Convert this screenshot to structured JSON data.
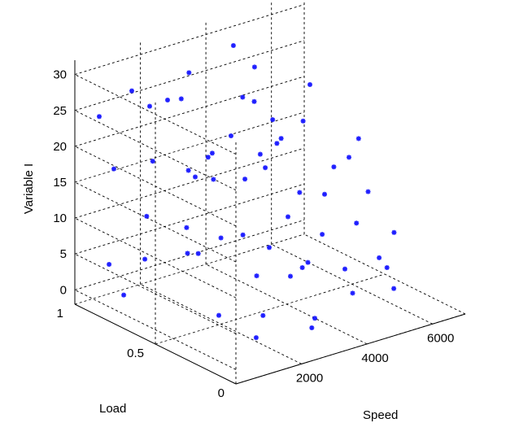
{
  "chart_data": {
    "type": "scatter",
    "dimensions": 3,
    "title": "",
    "xlabel": "Speed",
    "ylabel": "Load",
    "zlabel": "Variable I",
    "xlim": [
      0,
      7000
    ],
    "ylim": [
      0,
      1
    ],
    "zlim": [
      -2,
      32
    ],
    "x_ticks": [
      2000,
      4000,
      6000
    ],
    "y_ticks": [
      0,
      0.5,
      1
    ],
    "z_ticks": [
      0,
      5,
      10,
      15,
      20,
      25,
      30
    ],
    "x_tick_labels": [
      "2000",
      "4000",
      "6000"
    ],
    "y_tick_labels": [
      "0",
      "0.5",
      "1"
    ],
    "z_tick_labels": [
      "0",
      "5",
      "10",
      "15",
      "20",
      "25",
      "30"
    ],
    "grid": true,
    "marker": "*",
    "marker_color": "#1f1fff",
    "series": [
      {
        "points": [
          [
            500,
            0.95,
            24
          ],
          [
            700,
            0.9,
            17
          ],
          [
            1000,
            0.85,
            28
          ],
          [
            900,
            0.7,
            20
          ],
          [
            1300,
            0.8,
            26
          ],
          [
            1600,
            0.75,
            27
          ],
          [
            1500,
            0.6,
            19
          ],
          [
            1200,
            0.55,
            12
          ],
          [
            800,
            0.95,
            3
          ],
          [
            1000,
            0.9,
            -1
          ],
          [
            1400,
            0.85,
            4
          ],
          [
            1800,
            0.6,
            7
          ],
          [
            2000,
            0.5,
            10
          ],
          [
            2200,
            0.7,
            16
          ],
          [
            1700,
            0.9,
            9
          ],
          [
            2500,
            0.8,
            29
          ],
          [
            2800,
            0.6,
            22
          ],
          [
            3000,
            0.75,
            14
          ],
          [
            2600,
            0.4,
            5
          ],
          [
            2300,
            0.3,
            1
          ],
          [
            3200,
            0.5,
            20
          ],
          [
            3400,
            0.65,
            26
          ],
          [
            3600,
            0.55,
            17
          ],
          [
            3800,
            0.45,
            11
          ],
          [
            3500,
            0.3,
            6
          ],
          [
            3300,
            0.2,
            -1
          ],
          [
            2900,
            0.1,
            2
          ],
          [
            4000,
            0.7,
            24
          ],
          [
            4200,
            0.6,
            19
          ],
          [
            4400,
            0.5,
            13
          ],
          [
            4600,
            0.4,
            8
          ],
          [
            4800,
            0.3,
            4
          ],
          [
            4100,
            0.85,
            30
          ],
          [
            4500,
            0.8,
            27
          ],
          [
            5000,
            0.6,
            21
          ],
          [
            5200,
            0.45,
            16
          ],
          [
            5400,
            0.35,
            9
          ],
          [
            5600,
            0.25,
            5
          ],
          [
            5800,
            0.2,
            1
          ],
          [
            6000,
            0.4,
            12
          ],
          [
            6200,
            0.5,
            18
          ],
          [
            6300,
            0.3,
            7
          ],
          [
            5700,
            0.7,
            24
          ],
          [
            6400,
            0.6,
            14
          ],
          [
            2000,
            0.2,
            12
          ],
          [
            2400,
            0.15,
            8
          ],
          [
            3000,
            0.95,
            23
          ],
          [
            3700,
            0.9,
            15
          ],
          [
            1200,
            0.35,
            2
          ],
          [
            1600,
            0.2,
            0
          ],
          [
            4300,
            0.15,
            3
          ],
          [
            5100,
            0.1,
            6
          ],
          [
            2700,
            0.85,
            3
          ],
          [
            3900,
            0.75,
            5
          ],
          [
            4700,
            0.9,
            10
          ],
          [
            5300,
            0.85,
            18
          ],
          [
            3100,
            0.35,
            24
          ],
          [
            2100,
            0.6,
            20
          ],
          [
            4900,
            0.55,
            2
          ],
          [
            5900,
            0.65,
            9
          ]
        ]
      }
    ]
  }
}
